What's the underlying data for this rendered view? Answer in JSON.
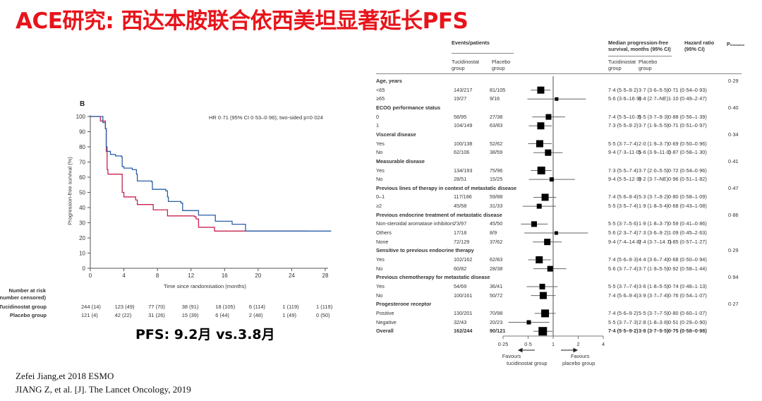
{
  "title": "ACE研究: 西达本胺联合依西美坦显著延长PFS",
  "km": {
    "panel_label": "B",
    "hr_text": "HR 0·71 (95% CI 0·53–0·96); two-sided p=0·024",
    "ylabel": "Progression-free survival (%)",
    "xlabel": "Time since randomisation (months)",
    "colors": {
      "tucidinostat": "#2a5fa8",
      "placebo": "#c8234f"
    },
    "risk_title1": "Number at risk",
    "risk_title2": "(number censored)",
    "risk_rows": [
      {
        "label": "Tucidinostat group",
        "values": [
          "244 (14)",
          "123 (49)",
          "77 (70)",
          "38 (91)",
          "18 (105)",
          "6 (114)",
          "1 (119)",
          "1 (119)"
        ]
      },
      {
        "label": "Placebo group",
        "values": [
          "121 (4)",
          "42 (22)",
          "31 (26)",
          "15 (39)",
          "6 (44)",
          "2 (48)",
          "1 (49)",
          "0 (50)"
        ]
      }
    ],
    "pfs_text": "PFS:  9.2月 vs.3.8月"
  },
  "chart_data": [
    {
      "type": "line",
      "title": "",
      "xlabel": "Time since randomisation (months)",
      "ylabel": "Progression-free survival (%)",
      "xlim": [
        0,
        28.8
      ],
      "ylim": [
        0,
        100
      ],
      "xticks": [
        "0",
        "4",
        "8",
        "12",
        "16",
        "20",
        "24",
        "28"
      ],
      "yticks": [
        "0",
        "10",
        "20",
        "30",
        "40",
        "50",
        "60",
        "70",
        "80",
        "90",
        "100"
      ],
      "series": [
        {
          "name": "Tucidinostat group",
          "x": [
            0,
            1.5,
            1.8,
            1.9,
            2,
            2.4,
            3,
            3.7,
            3.8,
            4,
            5,
            5.5,
            5.6,
            7.3,
            7.4,
            9,
            9.2,
            9.3,
            10.8,
            11,
            12.8,
            12.9,
            14.8,
            14.9,
            16.8,
            16.9,
            18.4,
            18.5,
            28.7
          ],
          "y": [
            100,
            96,
            92,
            80,
            77,
            75,
            74,
            73.5,
            67,
            66,
            65,
            62,
            57.5,
            57,
            52,
            51,
            47,
            44,
            43,
            38,
            38,
            35,
            35,
            31,
            31,
            29,
            29,
            24.5,
            24.5
          ]
        },
        {
          "name": "Placebo group",
          "x": [
            0,
            1.2,
            1.8,
            1.9,
            2,
            2.1,
            3.7,
            3.8,
            4,
            5.4,
            5.6,
            7.4,
            7.5,
            9.1,
            9.2,
            12.4,
            12.6,
            12.9,
            14.7,
            14.8,
            25.9
          ],
          "y": [
            100,
            97,
            92,
            77,
            65,
            62,
            62,
            50,
            47,
            45,
            42,
            42,
            38.5,
            38.5,
            34.5,
            34,
            32.5,
            27,
            27,
            24.5,
            24.5
          ]
        }
      ]
    },
    {
      "type": "forest",
      "xlabel_ticks": [
        "0·25",
        "0·5",
        "1",
        "2",
        "4"
      ],
      "ref_line": 1
    }
  ],
  "forest": {
    "h_events": "Events/patients",
    "h_median": "Median progression-free survival, months (95% CI)",
    "h_median2": "survival, months (95% CI)",
    "h_median1": "Median progression-free",
    "h_hr1": "Hazard ratio",
    "h_hr2": "(95% CI)",
    "h_p": "P",
    "h_p_sub": "interaction",
    "h_tuc1": "Tucidinostat",
    "h_tuc2": "group",
    "h_pla1": "Placebo",
    "h_pla2": "group",
    "fav_left1": "Favours",
    "fav_left2": "tucidinostat group",
    "fav_right1": "Favours",
    "fav_right2": "placebo group",
    "rows": [
      {
        "label": "Age, years",
        "header": true,
        "p": "0·29"
      },
      {
        "label": "<65",
        "tuc": "143/217",
        "pla": "81/105",
        "mt": "7·4 (5·5–9·2)",
        "mp": "3·7 (3·6–5·5)",
        "hr_text": "0·71 (0·54–0·93)",
        "hr": 0.71,
        "lo": 0.54,
        "hi": 0.93,
        "w": 9
      },
      {
        "label": "≥65",
        "tuc": "19/27",
        "pla": "9/16",
        "mt": "5·6 (3·6–16·9)",
        "mp": "8·4 (2·7–NE)",
        "hr_text": "1·10 (0·49–2·47)",
        "hr": 1.1,
        "lo": 0.49,
        "hi": 2.47,
        "w": 4
      },
      {
        "label": "ECOG performance status",
        "header": true,
        "p": "0·40"
      },
      {
        "label": "0",
        "tuc": "58/95",
        "pla": "27/38",
        "mt": "7·4 (5·5–10·3)",
        "mp": "5·5 (3·7–9·3)",
        "hr_text": "0·88 (0·56–1·39)",
        "hr": 0.88,
        "lo": 0.56,
        "hi": 1.39,
        "w": 7
      },
      {
        "label": "1",
        "tuc": "104/149",
        "pla": "63/83",
        "mt": "7·3 (5·5–9·2)",
        "mp": "3·7 (1·9–5·5)",
        "hr_text": "0·71 (0·51–0·97)",
        "hr": 0.71,
        "lo": 0.51,
        "hi": 0.97,
        "w": 9
      },
      {
        "label": "Visceral disease",
        "header": true,
        "p": "0·34"
      },
      {
        "label": "Yes",
        "tuc": "100/138",
        "pla": "52/62",
        "mt": "5·5 (3·7–7·4)",
        "mp": "2·0 (1·9–3·7)",
        "hr_text": "0·69 (0·50–0·96)",
        "hr": 0.69,
        "lo": 0.5,
        "hi": 0.96,
        "w": 9
      },
      {
        "label": "No",
        "tuc": "62/106",
        "pla": "38/59",
        "mt": "9·4 (7·3–11·0)",
        "mp": "5·6 (3·9–11·0)",
        "hr_text": "0·87 (0·58–1·30)",
        "hr": 0.87,
        "lo": 0.58,
        "hi": 1.3,
        "w": 8
      },
      {
        "label": "Measurable disease",
        "header": true,
        "p": "0·41"
      },
      {
        "label": "Yes",
        "tuc": "134/193",
        "pla": "75/96",
        "mt": "7·3 (5·5–7·4)",
        "mp": "3·7 (2·0–5·5)",
        "hr_text": "0·72 (0·54–0·96)",
        "hr": 0.72,
        "lo": 0.54,
        "hi": 0.96,
        "w": 10
      },
      {
        "label": "No",
        "tuc": "28/51",
        "pla": "15/25",
        "mt": "9·4 (5·5–12·9)",
        "mp": "9·2 (3·7–NE)",
        "hr_text": "0·96 (0·51–1·82)",
        "hr": 0.96,
        "lo": 0.51,
        "hi": 1.82,
        "w": 5
      },
      {
        "label": "Previous lines of therapy in context of metastatic disease",
        "header": true,
        "p": "0·47"
      },
      {
        "label": "0–1",
        "tuc": "117/186",
        "pla": "59/88",
        "mt": "7·4 (5·6–9·4)",
        "mp": "5·3 (3·7–9·2)",
        "hr_text": "0·80 (0·58–1·09)",
        "hr": 0.8,
        "lo": 0.58,
        "hi": 1.09,
        "w": 9
      },
      {
        "label": "≥2",
        "tuc": "45/58",
        "pla": "31/33",
        "mt": "5·5 (3·5–7·4)",
        "mp": "1·9 (1·8–5·4)",
        "hr_text": "0·68 (0·43–1·08)",
        "hr": 0.68,
        "lo": 0.43,
        "hi": 1.08,
        "w": 6
      },
      {
        "label": "Previous endocrine treatment of metastatic disease",
        "header": true,
        "p": "0·86"
      },
      {
        "label": "Non-steroidal aromatase inhibitors",
        "tuc": "73/97",
        "pla": "45/50",
        "mt": "5·5 (3·7–5·6)",
        "mp": "1·9 (1·8–3·7)",
        "hr_text": "0·59 (0·41–0·86)",
        "hr": 0.59,
        "lo": 0.41,
        "hi": 0.86,
        "w": 7
      },
      {
        "label": "Others",
        "tuc": "17/18",
        "pla": "8/9",
        "mt": "5·6 (2·3–7·4)",
        "mp": "7·3 (3·6–9·2)",
        "hr_text": "1·09 (0·45–2·63)",
        "hr": 1.09,
        "lo": 0.45,
        "hi": 2.63,
        "w": 4
      },
      {
        "label": "None",
        "tuc": "72/129",
        "pla": "37/62",
        "mt": "9·4 (7·4–14·8)",
        "mp": "7·4 (3·7–14·7)",
        "hr_text": "0·85 (0·57–1·27)",
        "hr": 0.85,
        "lo": 0.57,
        "hi": 1.27,
        "w": 8
      },
      {
        "label": "Sensitive to previous endocrine therapy",
        "header": true,
        "p": "0·29"
      },
      {
        "label": "Yes",
        "tuc": "102/162",
        "pla": "62/83",
        "mt": "7·4 (5·6–9·3)",
        "mp": "4·4 (3·6–7·4)",
        "hr_text": "0·68 (0·50–0·94)",
        "hr": 0.68,
        "lo": 0.5,
        "hi": 0.94,
        "w": 9
      },
      {
        "label": "No",
        "tuc": "60/82",
        "pla": "28/38",
        "mt": "5·6 (3·7–7·4)",
        "mp": "3·7 (1·9–5·5)",
        "hr_text": "0·92 (0·58–1·44)",
        "hr": 0.92,
        "lo": 0.58,
        "hi": 1.44,
        "w": 7
      },
      {
        "label": "Previous chemotherapy for metastatic disease",
        "header": true,
        "p": "0·94"
      },
      {
        "label": "Yes",
        "tuc": "54/69",
        "pla": "36/41",
        "mt": "5·5 (3·7–7·4)",
        "mp": "3·6 (1·8–5·5)",
        "hr_text": "0·74 (0·48–1·13)",
        "hr": 0.74,
        "lo": 0.48,
        "hi": 1.13,
        "w": 7
      },
      {
        "label": "No",
        "tuc": "100/161",
        "pla": "50/72",
        "mt": "7·4 (5·6–9·4)",
        "mp": "3·9 (3·7–7·4)",
        "hr_text": "0·76 (0·54–1·07)",
        "hr": 0.76,
        "lo": 0.54,
        "hi": 1.07,
        "w": 9
      },
      {
        "label": "Progesterone receptor",
        "header": true,
        "p": "0·27"
      },
      {
        "label": "Positive",
        "tuc": "130/201",
        "pla": "70/98",
        "mt": "7·4 (5·6–9·2)",
        "mp": "5·5 (3·7–7·5)",
        "hr_text": "0·80 (0·60–1·07)",
        "hr": 0.8,
        "lo": 0.6,
        "hi": 1.07,
        "w": 10
      },
      {
        "label": "Negative",
        "tuc": "32/43",
        "pla": "20/23",
        "mt": "5·5 (3·7–7·3)",
        "mp": "2·8 (1·8–3·8)",
        "hr_text": "0·51 (0·29–0·90)",
        "hr": 0.51,
        "lo": 0.29,
        "hi": 0.9,
        "w": 5
      },
      {
        "label": "Overall",
        "bold": true,
        "tuc": "162/244",
        "pla": "90/121",
        "mt": "7·4 (5·5–9·2)",
        "mp": "3·8 (3·7–5·5)",
        "hr_text": "0·75 (0·58–0·98)",
        "hr": 0.75,
        "lo": 0.58,
        "hi": 0.98,
        "w": 11
      }
    ]
  },
  "refs": [
    "Zefei Jiang,et 2018 ESMO",
    "JIANG Z, et al. [J]. The Lancet Oncology, 2019"
  ]
}
